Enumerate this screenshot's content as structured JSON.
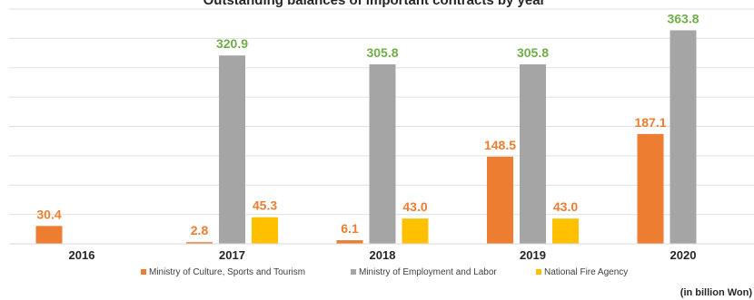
{
  "chart_data": {
    "type": "bar",
    "title": "Outstanding balances of important contracts by year",
    "unit_note": "(in billion Won)",
    "categories": [
      "2016",
      "2017",
      "2018",
      "2019",
      "2020"
    ],
    "series": [
      {
        "name": "Ministry of Culture, Sports and Tourism",
        "color": "#ED7D31",
        "label_color": "#ED7D31",
        "values": [
          30.4,
          2.8,
          6.1,
          148.5,
          187.1
        ]
      },
      {
        "name": "Ministry of Employment and Labor",
        "color": "#A5A5A5",
        "label_color": "#70AD47",
        "values": [
          null,
          320.9,
          305.8,
          305.8,
          363.8
        ]
      },
      {
        "name": "National Fire Agency",
        "color": "#FFC000",
        "label_color": "#ED7D31",
        "values": [
          null,
          45.3,
          43.0,
          43.0,
          null
        ]
      }
    ],
    "ylim": [
      0,
      400
    ],
    "grid": true,
    "legend_position": "bottom"
  }
}
